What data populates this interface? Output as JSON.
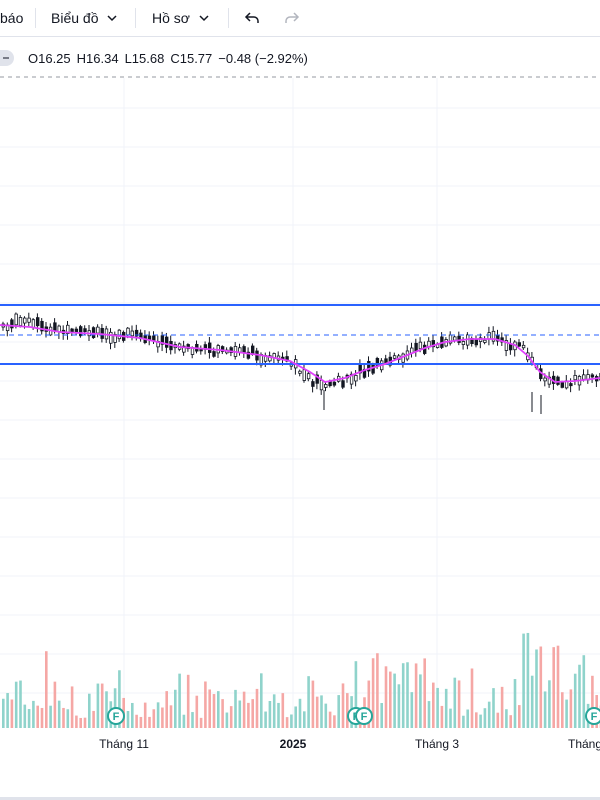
{
  "toolbar": {
    "items": [
      {
        "label": "báo",
        "has_chevron": false
      },
      {
        "label": "Biểu đồ",
        "has_chevron": true
      },
      {
        "label": "Hồ sơ",
        "has_chevron": true
      }
    ],
    "undo_icon": "undo-icon",
    "redo_icon": "redo-icon"
  },
  "legend": {
    "open": "O16.25",
    "high": "H16.34",
    "low": "L15.68",
    "close": "C15.77",
    "change": "−0.48 (−2.92%)"
  },
  "colors": {
    "up": "#26a69a",
    "down": "#ef5350",
    "volume_up": "#8fd3cb",
    "volume_down": "#f5a7a5",
    "ma_line": "#e040fb",
    "horizontal_lines": "#2962ff",
    "grid": "#f0f3fa"
  },
  "chart_data": {
    "type": "candlestick",
    "x_tick_labels": [
      "Tháng 11",
      "2025",
      "Tháng 3",
      "Tháng"
    ],
    "horizontal_levels": [
      {
        "style": "solid",
        "value": "upper channel"
      },
      {
        "style": "dashed",
        "value": "mid channel"
      },
      {
        "style": "solid",
        "value": "lower channel"
      }
    ],
    "event_markers": [
      {
        "label": "F",
        "position": "Nov"
      },
      {
        "label": "F",
        "position": "Jan"
      },
      {
        "label": "F",
        "position": "Jan"
      },
      {
        "label": "F",
        "position": "Apr"
      }
    ]
  }
}
